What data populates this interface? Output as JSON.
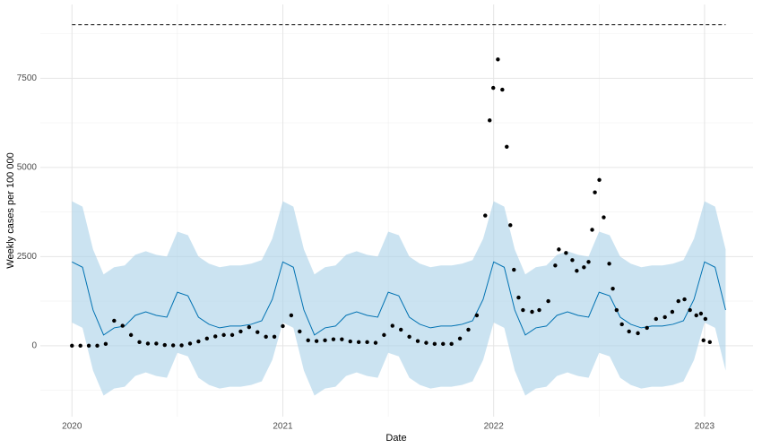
{
  "chart_data": {
    "type": "scatter",
    "x_label": "Date",
    "y_label": "Weekly cases per 100 000",
    "xlim": [
      2019.85,
      2023.23
    ],
    "xticks": [
      2020,
      2021,
      2022,
      2023
    ],
    "x_minor_gridlines": [
      2020.5,
      2021.5,
      2022.5
    ],
    "ylim": [
      -1990,
      9570
    ],
    "yticks": [
      0,
      2500,
      5000,
      7500
    ],
    "y_minor_gridlines": [
      -1250,
      1250,
      3750,
      6250,
      8750
    ],
    "grid": true,
    "point_color": "#000000",
    "line_color": "#0072B2",
    "band_color": "#a9d1e8",
    "cap": 9000,
    "cap_xlim": [
      2020,
      2023.1
    ],
    "x": [
      2020.0,
      2020.04,
      2020.08,
      2020.12,
      2020.16,
      2020.2,
      2020.24,
      2020.28,
      2020.32,
      2020.36,
      2020.4,
      2020.44,
      2020.48,
      2020.52,
      2020.56,
      2020.6,
      2020.64,
      2020.68,
      2020.72,
      2020.76,
      2020.8,
      2020.84,
      2020.88,
      2020.92,
      2020.96,
      2021.0,
      2021.04,
      2021.08,
      2021.12,
      2021.16,
      2021.2,
      2021.24,
      2021.28,
      2021.32,
      2021.36,
      2021.4,
      2021.44,
      2021.48,
      2021.52,
      2021.56,
      2021.6,
      2021.64,
      2021.68,
      2021.72,
      2021.76,
      2021.8,
      2021.84,
      2021.88,
      2021.92,
      2021.96,
      2021.981,
      2021.998,
      2022.02,
      2022.041,
      2022.062,
      2022.079,
      2022.096,
      2022.118,
      2022.139,
      2022.182,
      2022.216,
      2022.259,
      2022.292,
      2022.309,
      2022.343,
      2022.373,
      2022.394,
      2022.428,
      2022.45,
      2022.467,
      2022.48,
      2022.501,
      2022.522,
      2022.548,
      2022.565,
      2022.583,
      2022.608,
      2022.642,
      2022.684,
      2022.727,
      2022.77,
      2022.812,
      2022.847,
      2022.876,
      2022.905,
      2022.931,
      2022.961,
      2022.983,
      2022.995,
      2023.004,
      2023.025
    ],
    "values": [
      0,
      0,
      0,
      0,
      50,
      700,
      560,
      300,
      100,
      60,
      60,
      20,
      10,
      10,
      60,
      120,
      200,
      260,
      300,
      300,
      400,
      520,
      380,
      250,
      250,
      550,
      850,
      400,
      150,
      130,
      150,
      180,
      180,
      120,
      100,
      100,
      80,
      300,
      560,
      450,
      250,
      130,
      80,
      50,
      50,
      50,
      200,
      450,
      850,
      3650,
      6320,
      7230,
      8030,
      7180,
      5580,
      3380,
      2130,
      1350,
      1000,
      950,
      1000,
      1250,
      2250,
      2700,
      2600,
      2400,
      2100,
      2200,
      2350,
      3250,
      4300,
      4650,
      3600,
      2300,
      1600,
      1000,
      600,
      400,
      350,
      500,
      750,
      800,
      950,
      1250,
      1300,
      1000,
      850,
      900,
      150,
      750,
      100
    ],
    "forecast": {
      "x": [
        2020.0,
        2020.05,
        2020.1,
        2020.15,
        2020.2,
        2020.25,
        2020.3,
        2020.35,
        2020.4,
        2020.45,
        2020.5,
        2020.55,
        2020.6,
        2020.65,
        2020.7,
        2020.75,
        2020.8,
        2020.85,
        2020.9,
        2020.95,
        2021.0,
        2021.05,
        2021.1,
        2021.15,
        2021.2,
        2021.25,
        2021.3,
        2021.35,
        2021.4,
        2021.45,
        2021.5,
        2021.55,
        2021.6,
        2021.65,
        2021.7,
        2021.75,
        2021.8,
        2021.85,
        2021.9,
        2021.95,
        2022.0,
        2022.05,
        2022.1,
        2022.15,
        2022.2,
        2022.25,
        2022.3,
        2022.35,
        2022.4,
        2022.45,
        2022.5,
        2022.55,
        2022.6,
        2022.65,
        2022.7,
        2022.75,
        2022.8,
        2022.85,
        2022.9,
        2022.95,
        2023.0,
        2023.05,
        2023.1
      ],
      "values": [
        2350,
        2200,
        1000,
        300,
        500,
        550,
        850,
        950,
        850,
        800,
        1500,
        1400,
        800,
        600,
        500,
        550,
        550,
        600,
        700,
        1300,
        2350,
        2200,
        1000,
        300,
        500,
        550,
        850,
        950,
        850,
        800,
        1500,
        1400,
        800,
        600,
        500,
        550,
        550,
        600,
        700,
        1300,
        2350,
        2200,
        1000,
        300,
        500,
        550,
        850,
        950,
        850,
        800,
        1500,
        1400,
        800,
        600,
        500,
        550,
        550,
        600,
        700,
        1300,
        2350,
        2200,
        1000
      ],
      "lower": [
        650,
        500,
        -700,
        -1400,
        -1200,
        -1150,
        -850,
        -750,
        -850,
        -900,
        -200,
        -300,
        -900,
        -1100,
        -1200,
        -1150,
        -1150,
        -1100,
        -1000,
        -400,
        650,
        500,
        -700,
        -1400,
        -1200,
        -1150,
        -850,
        -750,
        -850,
        -900,
        -200,
        -300,
        -900,
        -1100,
        -1200,
        -1150,
        -1150,
        -1100,
        -1000,
        -400,
        650,
        500,
        -700,
        -1400,
        -1200,
        -1150,
        -850,
        -750,
        -850,
        -900,
        -200,
        -300,
        -900,
        -1100,
        -1200,
        -1150,
        -1150,
        -1100,
        -1000,
        -400,
        650,
        500,
        -700
      ],
      "upper": [
        4050,
        3900,
        2700,
        2000,
        2200,
        2250,
        2550,
        2650,
        2550,
        2500,
        3200,
        3100,
        2500,
        2300,
        2200,
        2250,
        2250,
        2300,
        2400,
        3000,
        4050,
        3900,
        2700,
        2000,
        2200,
        2250,
        2550,
        2650,
        2550,
        2500,
        3200,
        3100,
        2500,
        2300,
        2200,
        2250,
        2250,
        2300,
        2400,
        3000,
        4050,
        3900,
        2700,
        2000,
        2200,
        2250,
        2550,
        2650,
        2550,
        2500,
        3200,
        3100,
        2500,
        2300,
        2200,
        2250,
        2250,
        2300,
        2400,
        3000,
        4050,
        3900,
        2700
      ]
    }
  }
}
